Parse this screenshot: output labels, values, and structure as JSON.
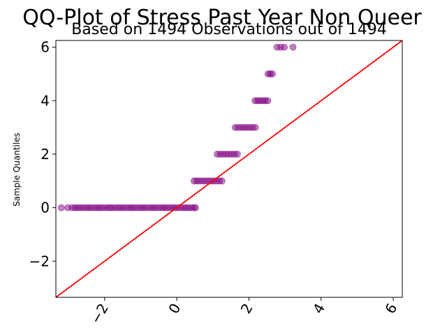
{
  "chart_data": {
    "type": "scatter",
    "title": "QQ-Plot of Stress Past Year Non Queer",
    "subtitle": "Based on 1494 Observations out of 1494",
    "xlabel": "",
    "ylabel": "Sample Quantiles",
    "xlim": [
      -3.35,
      6.25
    ],
    "ylim": [
      -3.35,
      6.25
    ],
    "x_ticks": [
      -2,
      0,
      2,
      4,
      6
    ],
    "x_tick_labels": [
      "−2",
      "0",
      "2",
      "4",
      "6"
    ],
    "y_ticks": [
      -2,
      0,
      2,
      4,
      6
    ],
    "y_tick_labels": [
      "−2",
      "0",
      "2",
      "4",
      "6"
    ],
    "x_tick_rotation_deg": 60,
    "grid": false,
    "marker_color": "#800080",
    "marker_alpha": 0.5,
    "reference_line": {
      "from": [
        -3.35,
        -3.35
      ],
      "to": [
        6.25,
        6.25
      ],
      "color": "#ff0000"
    },
    "series": [
      {
        "points": [
          [
            -3.2,
            0
          ],
          [
            -3.02,
            0
          ],
          [
            -2.9,
            0
          ],
          [
            -2.82,
            0
          ],
          [
            -2.75,
            0
          ],
          [
            -2.68,
            0
          ],
          [
            -2.6,
            0
          ],
          [
            -2.52,
            0
          ],
          [
            -2.45,
            0
          ],
          [
            -2.38,
            0
          ],
          [
            -2.3,
            0
          ],
          [
            -2.22,
            0
          ],
          [
            -2.15,
            0
          ],
          [
            -2.08,
            0
          ],
          [
            -2.0,
            0
          ],
          [
            -1.92,
            0
          ],
          [
            -1.85,
            0
          ],
          [
            -1.78,
            0
          ],
          [
            -1.7,
            0
          ],
          [
            -1.62,
            0
          ],
          [
            -1.55,
            0
          ],
          [
            -1.48,
            0
          ],
          [
            -1.4,
            0
          ],
          [
            -1.32,
            0
          ],
          [
            -1.25,
            0
          ],
          [
            -1.18,
            0
          ],
          [
            -1.1,
            0
          ],
          [
            -1.02,
            0
          ],
          [
            -0.95,
            0
          ],
          [
            -0.88,
            0
          ],
          [
            -0.8,
            0
          ],
          [
            -0.72,
            0
          ],
          [
            -0.65,
            0
          ],
          [
            -0.58,
            0
          ],
          [
            -0.5,
            0
          ],
          [
            -0.42,
            0
          ],
          [
            -0.35,
            0
          ],
          [
            -0.28,
            0
          ],
          [
            -0.2,
            0
          ],
          [
            -0.12,
            0
          ],
          [
            -0.05,
            0
          ],
          [
            0.02,
            0
          ],
          [
            0.1,
            0
          ],
          [
            0.18,
            0
          ],
          [
            0.25,
            0
          ],
          [
            0.32,
            0
          ],
          [
            0.4,
            0
          ],
          [
            0.47,
            0
          ],
          [
            0.52,
            0
          ],
          [
            0.48,
            1
          ],
          [
            0.55,
            1
          ],
          [
            0.62,
            1
          ],
          [
            0.7,
            1
          ],
          [
            0.78,
            1
          ],
          [
            0.86,
            1
          ],
          [
            0.94,
            1
          ],
          [
            1.02,
            1
          ],
          [
            1.1,
            1
          ],
          [
            1.18,
            1
          ],
          [
            1.25,
            1
          ],
          [
            1.12,
            2
          ],
          [
            1.2,
            2
          ],
          [
            1.28,
            2
          ],
          [
            1.36,
            2
          ],
          [
            1.44,
            2
          ],
          [
            1.52,
            2
          ],
          [
            1.6,
            2
          ],
          [
            1.68,
            2
          ],
          [
            1.62,
            3
          ],
          [
            1.7,
            3
          ],
          [
            1.78,
            3
          ],
          [
            1.86,
            3
          ],
          [
            1.94,
            3
          ],
          [
            2.02,
            3
          ],
          [
            2.1,
            3
          ],
          [
            2.18,
            3
          ],
          [
            2.17,
            4
          ],
          [
            2.24,
            4
          ],
          [
            2.31,
            4
          ],
          [
            2.38,
            4
          ],
          [
            2.45,
            4
          ],
          [
            2.52,
            4
          ],
          [
            2.53,
            5
          ],
          [
            2.59,
            5
          ],
          [
            2.65,
            5
          ],
          [
            2.78,
            6
          ],
          [
            2.88,
            6
          ],
          [
            2.98,
            6
          ],
          [
            3.22,
            6
          ]
        ]
      }
    ]
  }
}
